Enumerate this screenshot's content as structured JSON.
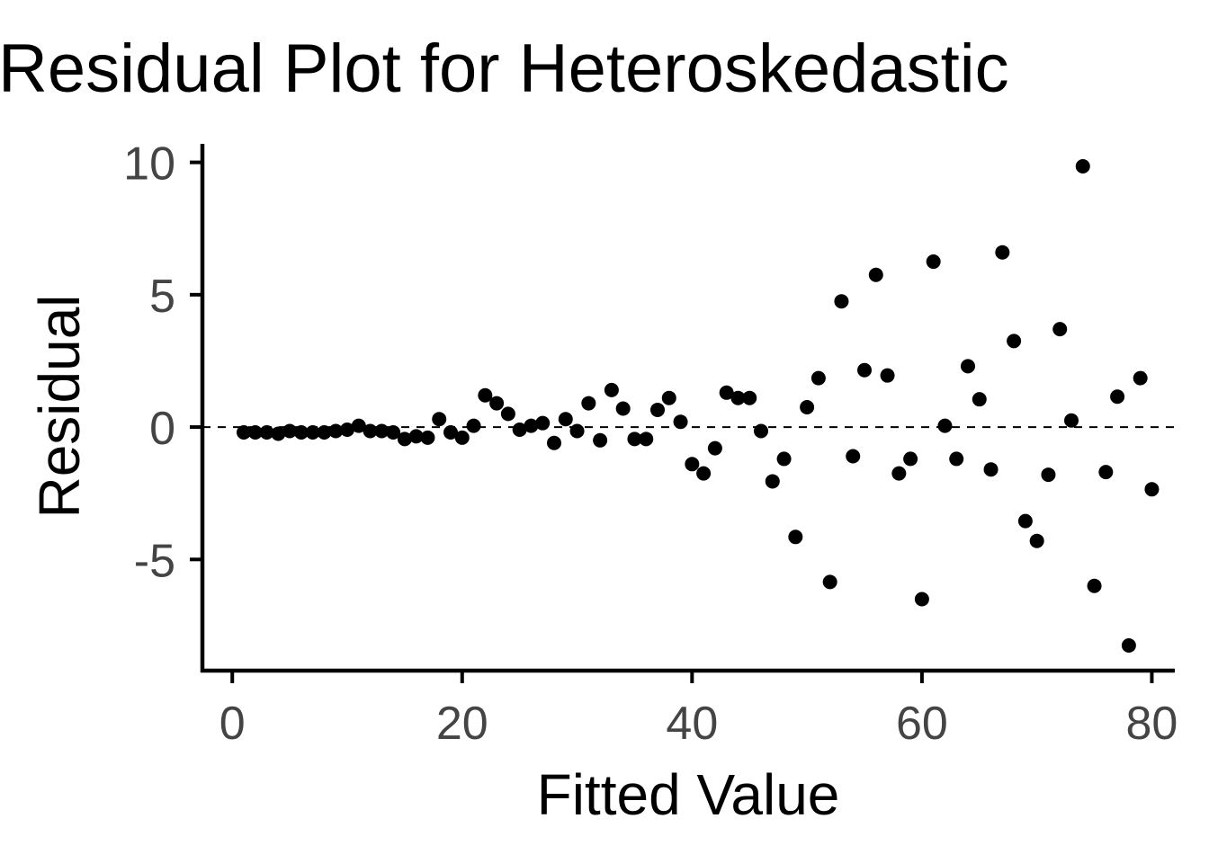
{
  "chart_data": {
    "type": "scatter",
    "title": "Residual Plot for Heteroskedastic",
    "xlabel": "Fitted Value",
    "ylabel": "Residual",
    "xlim": [
      -2.6,
      82
    ],
    "ylim": [
      -9.2,
      10.7
    ],
    "xticks": [
      0,
      20,
      40,
      60,
      80
    ],
    "xtick_labels": [
      "0",
      "20",
      "40",
      "60",
      "80"
    ],
    "yticks": [
      -5,
      0,
      5,
      10
    ],
    "ytick_labels": [
      "-5",
      "0",
      "5",
      "10"
    ],
    "reference_line": {
      "y": 0,
      "style": "dashed"
    },
    "grid": false,
    "legend": "none",
    "series": [
      {
        "x": [
          1,
          2,
          3,
          4,
          5,
          6,
          7,
          8,
          9,
          10,
          11,
          12,
          13,
          14,
          15,
          16,
          17,
          18,
          19,
          20,
          21,
          22,
          23,
          24,
          25,
          26,
          27,
          28,
          29,
          30,
          31,
          32,
          33,
          34,
          35,
          36,
          37,
          38,
          39,
          40,
          41,
          42,
          43,
          44,
          45,
          46,
          47,
          48,
          49,
          50,
          51,
          52,
          53,
          54,
          55,
          56,
          57,
          58,
          59,
          60,
          61,
          62,
          63,
          64,
          65,
          66,
          67,
          68,
          69,
          70,
          71,
          72,
          73,
          74,
          75,
          76,
          77,
          78,
          79,
          80
        ],
        "y": [
          -0.2,
          -0.2,
          -0.2,
          -0.25,
          -0.15,
          -0.2,
          -0.2,
          -0.2,
          -0.15,
          -0.1,
          0.05,
          -0.15,
          -0.15,
          -0.2,
          -0.45,
          -0.35,
          -0.4,
          0.3,
          -0.2,
          -0.4,
          0.05,
          1.2,
          0.9,
          0.5,
          -0.1,
          0.05,
          0.15,
          -0.6,
          0.3,
          -0.15,
          0.9,
          -0.5,
          1.4,
          0.7,
          -0.45,
          -0.45,
          0.65,
          1.1,
          0.2,
          -1.4,
          -1.75,
          -0.8,
          1.3,
          1.1,
          1.1,
          -0.15,
          -2.05,
          -1.2,
          -4.15,
          0.75,
          1.85,
          -5.85,
          4.75,
          -1.1,
          2.15,
          5.75,
          1.95,
          -1.75,
          -1.2,
          -6.5,
          6.25,
          0.05,
          -1.2,
          2.3,
          1.05,
          -1.6,
          6.6,
          3.25,
          -3.55,
          -4.3,
          -1.8,
          3.7,
          0.25,
          9.85,
          -6.0,
          -1.7,
          1.15,
          -8.25,
          1.85,
          -2.35
        ]
      }
    ]
  }
}
